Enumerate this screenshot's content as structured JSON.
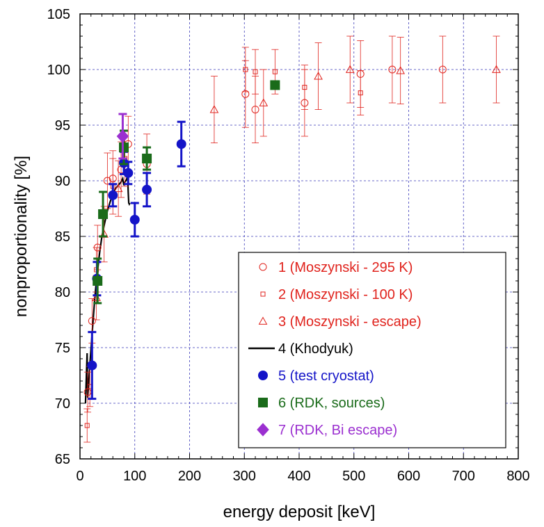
{
  "chart_data": {
    "type": "scatter",
    "xlabel": "energy deposit [keV]",
    "ylabel": "nonproportionality [%]",
    "xlim": [
      0,
      800
    ],
    "ylim": [
      65,
      105
    ],
    "xticks": [
      0,
      100,
      200,
      300,
      400,
      500,
      600,
      700,
      800
    ],
    "yticks": [
      65,
      70,
      75,
      80,
      85,
      90,
      95,
      100,
      105
    ],
    "grid": true,
    "legend_position": "bottom-right",
    "series": [
      {
        "name": "1 (Moszynski - 295 K)",
        "color": "#e0221c",
        "marker": "open-circle",
        "points": [
          {
            "x": 14,
            "y": 71.0,
            "err": 1.8
          },
          {
            "x": 22,
            "y": 77.4,
            "err": 2.0
          },
          {
            "x": 32,
            "y": 84.0,
            "err": 2.0
          },
          {
            "x": 50,
            "y": 90.0,
            "err": 2.5
          },
          {
            "x": 60,
            "y": 90.2,
            "err": 2.5
          },
          {
            "x": 75,
            "y": 91.0,
            "err": 2.5
          },
          {
            "x": 88,
            "y": 93.3,
            "err": 2.5
          },
          {
            "x": 122,
            "y": 91.5,
            "err": 2.7
          },
          {
            "x": 302,
            "y": 97.8,
            "err": 3.0
          },
          {
            "x": 320,
            "y": 96.4,
            "err": 3.0
          },
          {
            "x": 410,
            "y": 97.0,
            "err": 3.0
          },
          {
            "x": 512,
            "y": 99.6,
            "err": 3.0
          },
          {
            "x": 570,
            "y": 100.0,
            "err": 3.0
          },
          {
            "x": 662,
            "y": 100.0,
            "err": 3.0
          }
        ]
      },
      {
        "name": "2 (Moszynski - 100 K)",
        "color": "#e0221c",
        "marker": "open-square",
        "points": [
          {
            "x": 13,
            "y": 68.0,
            "err": 1.5
          },
          {
            "x": 18,
            "y": 71.5,
            "err": 1.8
          },
          {
            "x": 30,
            "y": 82.0,
            "err": 2.0
          },
          {
            "x": 60,
            "y": 89.5,
            "err": 2.5
          },
          {
            "x": 82,
            "y": 92.0,
            "err": 2.5
          },
          {
            "x": 302,
            "y": 100.0,
            "err": 2.0
          },
          {
            "x": 320,
            "y": 99.8,
            "err": 2.0
          },
          {
            "x": 356,
            "y": 99.8,
            "err": 2.0
          },
          {
            "x": 410,
            "y": 98.4,
            "err": 2.0
          },
          {
            "x": 512,
            "y": 97.9,
            "err": 2.0
          }
        ]
      },
      {
        "name": "3 (Moszynski - escape)",
        "color": "#e0221c",
        "marker": "open-triangle",
        "points": [
          {
            "x": 30,
            "y": 79.5,
            "err": 2.0
          },
          {
            "x": 44,
            "y": 85.2,
            "err": 2.5
          },
          {
            "x": 70,
            "y": 89.3,
            "err": 2.5
          },
          {
            "x": 245,
            "y": 96.4,
            "err": 3.0
          },
          {
            "x": 335,
            "y": 97.0,
            "err": 3.0
          },
          {
            "x": 435,
            "y": 99.4,
            "err": 3.0
          },
          {
            "x": 493,
            "y": 100.0,
            "err": 3.0
          },
          {
            "x": 585,
            "y": 99.9,
            "err": 3.0
          },
          {
            "x": 760,
            "y": 100.0,
            "err": 3.0
          }
        ]
      },
      {
        "name": "4 (Khodyuk)",
        "color": "#000000",
        "marker": "line",
        "points": [
          {
            "x": 10,
            "y": 70.0
          },
          {
            "x": 11,
            "y": 71.5
          },
          {
            "x": 12,
            "y": 73.0
          },
          {
            "x": 13,
            "y": 74.5
          },
          {
            "x": 13.5,
            "y": 72.0
          },
          {
            "x": 14,
            "y": 70.5
          },
          {
            "x": 15,
            "y": 71.2
          },
          {
            "x": 16,
            "y": 72.0
          },
          {
            "x": 18,
            "y": 73.5
          },
          {
            "x": 20,
            "y": 74.8
          },
          {
            "x": 22,
            "y": 76.2
          },
          {
            "x": 24,
            "y": 77.5
          },
          {
            "x": 26,
            "y": 78.8
          },
          {
            "x": 28,
            "y": 80.0
          },
          {
            "x": 30,
            "y": 81.0
          },
          {
            "x": 33,
            "y": 82.3
          },
          {
            "x": 36,
            "y": 83.6
          },
          {
            "x": 40,
            "y": 85.0
          },
          {
            "x": 45,
            "y": 86.2
          },
          {
            "x": 50,
            "y": 87.3
          },
          {
            "x": 55,
            "y": 88.1
          },
          {
            "x": 60,
            "y": 88.8
          },
          {
            "x": 65,
            "y": 89.3
          },
          {
            "x": 70,
            "y": 89.6
          },
          {
            "x": 75,
            "y": 89.9
          },
          {
            "x": 78,
            "y": 90.2
          },
          {
            "x": 80,
            "y": 89.6
          },
          {
            "x": 82,
            "y": 89.9
          },
          {
            "x": 85,
            "y": 90.1
          },
          {
            "x": 87,
            "y": 90.5
          },
          {
            "x": 88,
            "y": 89.0
          },
          {
            "x": 89,
            "y": 88.0
          },
          {
            "x": 90,
            "y": 87.9
          },
          {
            "x": 91,
            "y": 88.0
          }
        ]
      },
      {
        "name": "5 (test cryostat)",
        "color": "#1414c8",
        "marker": "filled-circle",
        "points": [
          {
            "x": 22,
            "y": 73.4,
            "err": 3.0
          },
          {
            "x": 31,
            "y": 81.2,
            "err": 1.5
          },
          {
            "x": 60,
            "y": 88.7,
            "err": 1.0
          },
          {
            "x": 80,
            "y": 91.6,
            "err": 1.0
          },
          {
            "x": 88,
            "y": 90.7,
            "err": 1.0
          },
          {
            "x": 100,
            "y": 86.5,
            "err": 1.5
          },
          {
            "x": 122,
            "y": 89.2,
            "err": 1.5
          },
          {
            "x": 185,
            "y": 93.3,
            "err": 2.0
          }
        ]
      },
      {
        "name": "6 (RDK, sources)",
        "color": "#1a6b1a",
        "marker": "filled-square",
        "points": [
          {
            "x": 32,
            "y": 81.0,
            "err": 2.0
          },
          {
            "x": 42,
            "y": 87.0,
            "err": 2.0
          },
          {
            "x": 80,
            "y": 93.0,
            "err": 1.5
          },
          {
            "x": 122,
            "y": 92.0,
            "err": 1.0
          },
          {
            "x": 356,
            "y": 98.6
          }
        ]
      },
      {
        "name": "7 (RDK, Bi escape)",
        "color": "#9b30d0",
        "marker": "filled-diamond",
        "points": [
          {
            "x": 78,
            "y": 94.0,
            "err": 2.0
          }
        ]
      }
    ]
  }
}
